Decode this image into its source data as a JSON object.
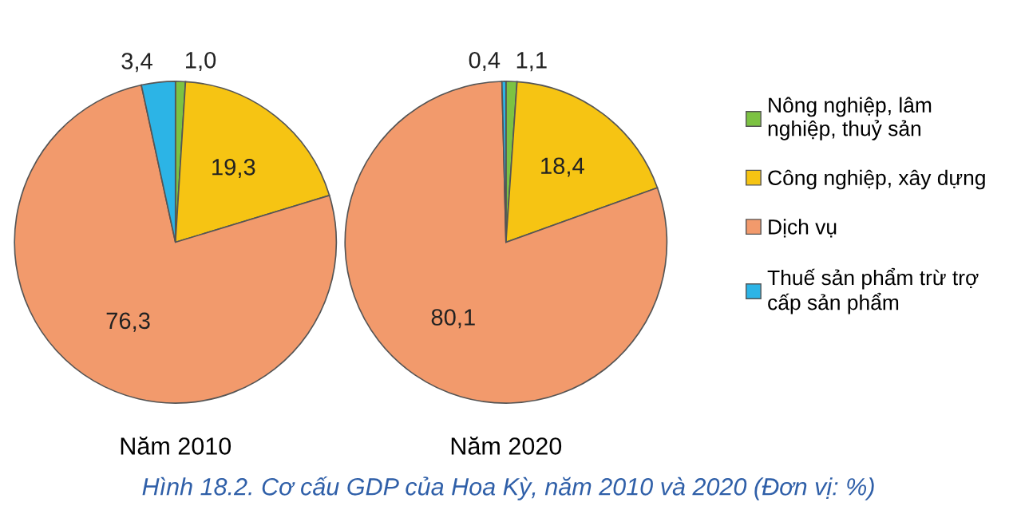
{
  "chart_data": [
    {
      "type": "pie",
      "title": "Năm 2010",
      "categories": [
        "Nông nghiệp, lâm\nnghiệp, thuỷ sản",
        "Công nghiệp, xây dựng",
        "Dịch vụ",
        "Thuế sản phẩm trừ trợ\ncấp sản phẩm"
      ],
      "values": [
        1.0,
        19.3,
        76.3,
        3.4
      ],
      "value_labels": [
        "1,0",
        "19,3",
        "76,3",
        "3,4"
      ],
      "colors": [
        "#7cc242",
        "#f6c413",
        "#f29a6c",
        "#2cb4e6"
      ],
      "legend": "right",
      "annotations": [
        "Hình 18.2. Cơ cấu GDP của Hoa Kỳ, năm 2010 và 2020 (Đơn vị: %)"
      ]
    },
    {
      "type": "pie",
      "title": "Năm 2020",
      "categories": [
        null,
        null,
        null,
        null
      ],
      "values": [
        1.1,
        18.4,
        80.1,
        0.4
      ],
      "value_labels": [
        "1,1",
        "18,4",
        "80,1",
        "0,4"
      ],
      "colors": [
        "#7cc242",
        "#f6c413",
        "#f29a6c",
        "#2cb4e6"
      ]
    }
  ]
}
